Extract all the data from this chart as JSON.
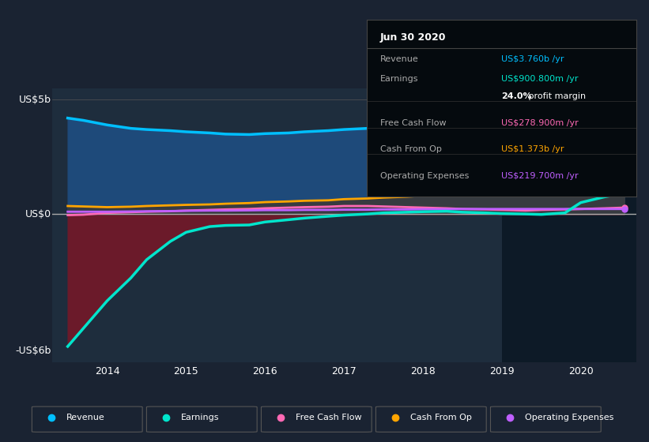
{
  "bg_color": "#1a2332",
  "plot_bg_color": "#1e2d3d",
  "highlight_bg_color": "#0d1a27",
  "highlight_start": 2019.0,
  "highlight_end": 2020.7,
  "y_label_5b": "US$5b",
  "y_label_0": "US$0",
  "y_label_neg6b": "-US$6b",
  "ylim": [
    -6.5,
    5.5
  ],
  "xlim": [
    2013.3,
    2020.7
  ],
  "x_ticks": [
    2014,
    2015,
    2016,
    2017,
    2018,
    2019,
    2020
  ],
  "zero_line_color": "#aaaaaa",
  "info_box": {
    "title": "Jun 30 2020",
    "rows": [
      {
        "label": "Revenue",
        "value": "US$3.760b /yr",
        "value_color": "#00bfff"
      },
      {
        "label": "Earnings",
        "value": "US$900.800m /yr",
        "value_color": "#00e5cc"
      },
      {
        "label": "",
        "value": "24.0% profit margin",
        "value_color": "#ffffff",
        "bold_part": "24.0%"
      },
      {
        "label": "Free Cash Flow",
        "value": "US$278.900m /yr",
        "value_color": "#ff69b4"
      },
      {
        "label": "Cash From Op",
        "value": "US$1.373b /yr",
        "value_color": "#ffa500"
      },
      {
        "label": "Operating Expenses",
        "value": "US$219.700m /yr",
        "value_color": "#bf5fff"
      }
    ],
    "label_color": "#aaaaaa",
    "bg_color": "#050a0e",
    "border_color": "#444444"
  },
  "legend": [
    {
      "label": "Revenue",
      "color": "#00bfff"
    },
    {
      "label": "Earnings",
      "color": "#00e5cc"
    },
    {
      "label": "Free Cash Flow",
      "color": "#ff69b4"
    },
    {
      "label": "Cash From Op",
      "color": "#ffa500"
    },
    {
      "label": "Operating Expenses",
      "color": "#bf5fff"
    }
  ],
  "revenue": {
    "x": [
      2013.5,
      2013.7,
      2014.0,
      2014.3,
      2014.5,
      2014.8,
      2015.0,
      2015.3,
      2015.5,
      2015.8,
      2016.0,
      2016.3,
      2016.5,
      2016.8,
      2017.0,
      2017.3,
      2017.5,
      2017.8,
      2018.0,
      2018.3,
      2018.5,
      2018.8,
      2019.0,
      2019.3,
      2019.5,
      2019.8,
      2020.0,
      2020.3,
      2020.55
    ],
    "y": [
      4.2,
      4.1,
      3.9,
      3.75,
      3.7,
      3.65,
      3.6,
      3.55,
      3.5,
      3.48,
      3.52,
      3.55,
      3.6,
      3.65,
      3.7,
      3.75,
      3.8,
      3.85,
      3.9,
      3.95,
      3.85,
      3.8,
      3.75,
      3.7,
      3.65,
      3.65,
      3.7,
      3.72,
      3.76
    ],
    "fill_color": "#1e4a7a",
    "line_color": "#00bfff"
  },
  "cash_from_op": {
    "x": [
      2013.5,
      2013.7,
      2014.0,
      2014.3,
      2014.5,
      2014.8,
      2015.0,
      2015.3,
      2015.5,
      2015.8,
      2016.0,
      2016.3,
      2016.5,
      2016.8,
      2017.0,
      2017.3,
      2017.5,
      2017.8,
      2018.0,
      2018.3,
      2018.5,
      2018.8,
      2019.0,
      2019.3,
      2019.5,
      2019.8,
      2020.0,
      2020.3,
      2020.55
    ],
    "y": [
      0.35,
      0.33,
      0.3,
      0.32,
      0.35,
      0.38,
      0.4,
      0.42,
      0.45,
      0.48,
      0.52,
      0.55,
      0.58,
      0.6,
      0.65,
      0.68,
      0.72,
      0.76,
      0.8,
      0.85,
      0.88,
      0.9,
      0.92,
      1.0,
      1.05,
      1.15,
      1.25,
      1.35,
      1.373
    ],
    "fill_color": "#3a3a3a",
    "line_color": "#ffa500"
  },
  "free_cash_flow": {
    "x": [
      2013.5,
      2013.7,
      2014.0,
      2014.3,
      2014.5,
      2014.8,
      2015.0,
      2015.3,
      2015.5,
      2015.8,
      2016.0,
      2016.3,
      2016.5,
      2016.8,
      2017.0,
      2017.3,
      2017.5,
      2017.8,
      2018.0,
      2018.3,
      2018.5,
      2018.8,
      2019.0,
      2019.3,
      2019.5,
      2019.8,
      2020.0,
      2020.3,
      2020.55
    ],
    "y": [
      -0.05,
      -0.03,
      0.05,
      0.08,
      0.1,
      0.12,
      0.15,
      0.18,
      0.2,
      0.22,
      0.25,
      0.28,
      0.3,
      0.32,
      0.35,
      0.35,
      0.33,
      0.3,
      0.28,
      0.25,
      0.22,
      0.2,
      0.18,
      0.15,
      0.18,
      0.2,
      0.22,
      0.25,
      0.279
    ],
    "line_color": "#ff69b4"
  },
  "operating_expenses": {
    "x": [
      2013.5,
      2013.7,
      2014.0,
      2014.3,
      2014.5,
      2014.8,
      2015.0,
      2015.3,
      2015.5,
      2015.8,
      2016.0,
      2016.3,
      2016.5,
      2016.8,
      2017.0,
      2017.3,
      2017.5,
      2017.8,
      2018.0,
      2018.3,
      2018.5,
      2018.8,
      2019.0,
      2019.3,
      2019.5,
      2019.8,
      2020.0,
      2020.3,
      2020.55
    ],
    "y": [
      0.1,
      0.1,
      0.1,
      0.11,
      0.12,
      0.13,
      0.14,
      0.15,
      0.15,
      0.16,
      0.17,
      0.17,
      0.18,
      0.18,
      0.19,
      0.19,
      0.2,
      0.2,
      0.21,
      0.21,
      0.22,
      0.22,
      0.22,
      0.22,
      0.22,
      0.22,
      0.22,
      0.22,
      0.2197
    ],
    "line_color": "#bf5fff"
  },
  "earnings": {
    "x": [
      2013.5,
      2013.7,
      2014.0,
      2014.3,
      2014.5,
      2014.8,
      2015.0,
      2015.3,
      2015.5,
      2015.8,
      2016.0,
      2016.3,
      2016.5,
      2016.8,
      2017.0,
      2017.3,
      2017.5,
      2017.8,
      2018.0,
      2018.3,
      2018.5,
      2018.8,
      2019.0,
      2019.3,
      2019.5,
      2019.8,
      2020.0,
      2020.3,
      2020.55
    ],
    "y": [
      -5.8,
      -5.0,
      -3.8,
      -2.8,
      -2.0,
      -1.2,
      -0.8,
      -0.55,
      -0.5,
      -0.48,
      -0.35,
      -0.25,
      -0.18,
      -0.1,
      -0.05,
      0.0,
      0.05,
      0.08,
      0.1,
      0.12,
      0.08,
      0.05,
      0.02,
      0.0,
      -0.02,
      0.05,
      0.5,
      0.75,
      0.9008
    ],
    "fill_color": "#6b1a2a",
    "line_color": "#00e5cc"
  }
}
